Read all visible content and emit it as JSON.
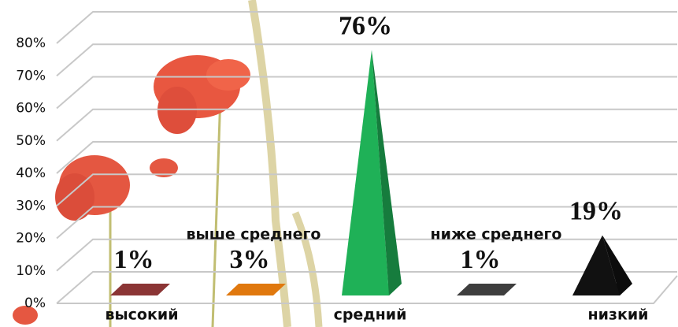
{
  "chart_data": {
    "type": "pyramid",
    "categories": [
      "высокий",
      "выше среднего",
      "средний",
      "ниже среднего",
      "низкий"
    ],
    "values": [
      1,
      3,
      76,
      1,
      19
    ],
    "value_labels": [
      "1%",
      "3%",
      "76%",
      "1%",
      "19%"
    ],
    "colors": [
      "#8b3535",
      "#e0780e",
      "#1fb157",
      "#3e3e3e",
      "#111111"
    ],
    "ylim": [
      0,
      80
    ],
    "yticks": [
      {
        "value": 0,
        "label": "0%"
      },
      {
        "value": 10,
        "label": "10%"
      },
      {
        "value": 20,
        "label": "20%"
      },
      {
        "value": 30,
        "label": "30%"
      },
      {
        "value": 40,
        "label": "40%"
      },
      {
        "value": 50,
        "label": "50%"
      },
      {
        "value": 60,
        "label": "60%"
      },
      {
        "value": 70,
        "label": "70%"
      },
      {
        "value": 80,
        "label": "80%"
      }
    ],
    "grid": true
  }
}
